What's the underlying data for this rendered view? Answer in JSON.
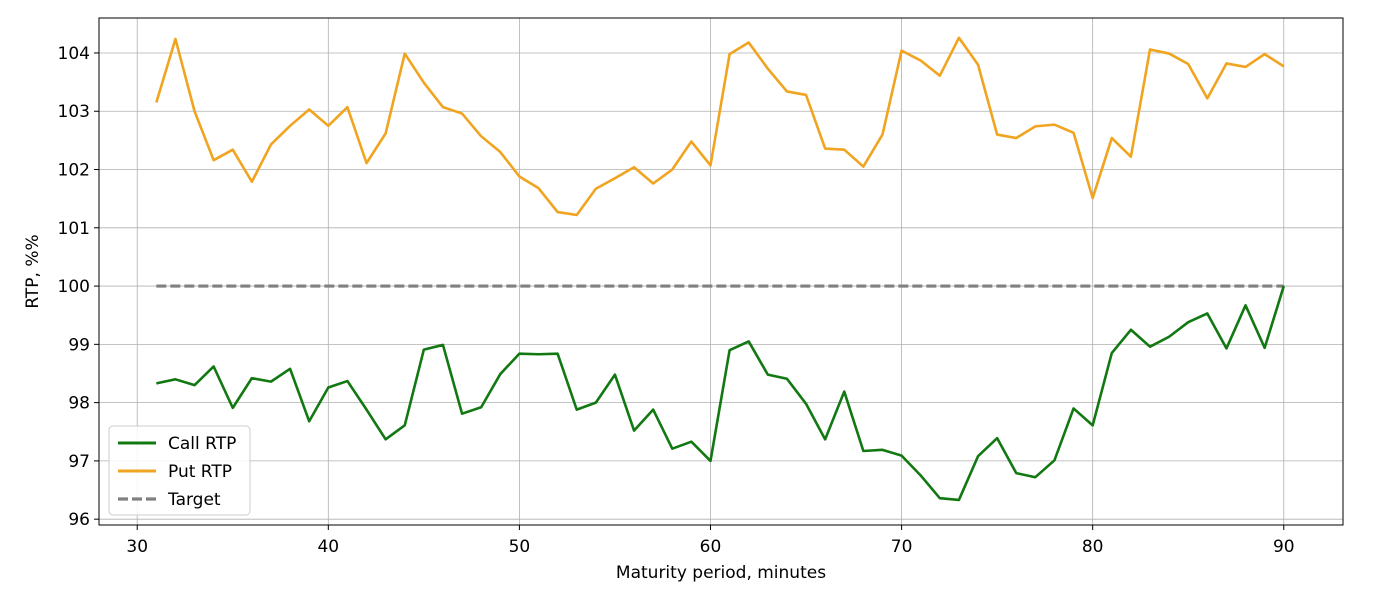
{
  "chart_data": {
    "type": "line",
    "title": "",
    "xlabel": "Maturity period, minutes",
    "ylabel": "RTP, %%",
    "xlim": [
      28,
      93.1
    ],
    "ylim": [
      95.9,
      104.6
    ],
    "xticks": [
      30,
      40,
      50,
      60,
      70,
      80,
      90
    ],
    "yticks": [
      96,
      97,
      98,
      99,
      100,
      101,
      102,
      103,
      104
    ],
    "grid": true,
    "legend_position": "lower-left",
    "x": [
      31,
      32,
      33,
      34,
      35,
      36,
      37,
      38,
      39,
      40,
      41,
      42,
      43,
      44,
      45,
      46,
      47,
      48,
      49,
      50,
      51,
      52,
      53,
      54,
      55,
      56,
      57,
      58,
      59,
      60,
      61,
      62,
      63,
      64,
      65,
      66,
      67,
      68,
      69,
      70,
      71,
      72,
      73,
      74,
      75,
      76,
      77,
      78,
      79,
      80,
      81,
      82,
      83,
      84,
      85,
      86,
      87,
      88,
      89,
      90
    ],
    "series": [
      {
        "name": "Call RTP",
        "color": "#127812",
        "style": "solid",
        "values": [
          98.33,
          98.4,
          98.3,
          98.62,
          97.91,
          98.42,
          98.36,
          98.58,
          97.68,
          98.26,
          98.37,
          97.88,
          97.37,
          97.61,
          98.91,
          98.99,
          97.81,
          97.92,
          98.49,
          98.84,
          98.83,
          98.84,
          97.88,
          98.0,
          98.48,
          97.52,
          97.88,
          97.21,
          97.33,
          97.0,
          98.9,
          99.05,
          98.48,
          98.41,
          97.98,
          97.37,
          98.19,
          97.17,
          97.19,
          97.09,
          96.75,
          96.36,
          96.33,
          97.08,
          97.39,
          96.79,
          96.72,
          97.01,
          97.9,
          97.61,
          98.85,
          99.25,
          98.96,
          99.13,
          99.38,
          99.53,
          98.93,
          99.67,
          98.94,
          100.0
        ]
      },
      {
        "name": "Put RTP",
        "color": "#f0a420",
        "style": "solid",
        "values": [
          103.15,
          104.24,
          103.0,
          102.16,
          102.34,
          101.79,
          102.43,
          102.75,
          103.03,
          102.75,
          103.07,
          102.11,
          102.62,
          103.99,
          103.49,
          103.07,
          102.96,
          102.57,
          102.3,
          101.88,
          101.68,
          101.27,
          101.22,
          101.67,
          101.85,
          102.04,
          101.76,
          102.0,
          102.48,
          102.07,
          103.98,
          104.18,
          103.73,
          103.34,
          103.28,
          102.36,
          102.34,
          102.05,
          102.6,
          104.04,
          103.87,
          103.61,
          104.26,
          103.8,
          102.6,
          102.54,
          102.74,
          102.77,
          102.63,
          101.51,
          102.54,
          102.22,
          104.06,
          103.99,
          103.81,
          103.22,
          103.82,
          103.76,
          103.98,
          103.77
        ]
      },
      {
        "name": "Target",
        "color": "#808080",
        "style": "dashed",
        "values": [
          100,
          100,
          100,
          100,
          100,
          100,
          100,
          100,
          100,
          100,
          100,
          100,
          100,
          100,
          100,
          100,
          100,
          100,
          100,
          100,
          100,
          100,
          100,
          100,
          100,
          100,
          100,
          100,
          100,
          100,
          100,
          100,
          100,
          100,
          100,
          100,
          100,
          100,
          100,
          100,
          100,
          100,
          100,
          100,
          100,
          100,
          100,
          100,
          100,
          100,
          100,
          100,
          100,
          100,
          100,
          100,
          100,
          100,
          100,
          100
        ]
      }
    ]
  }
}
